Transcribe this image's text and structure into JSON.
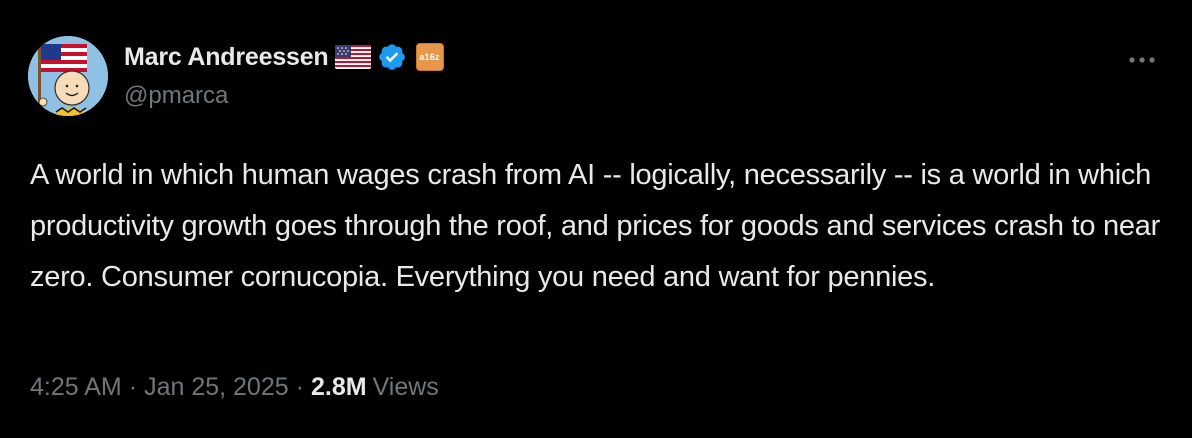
{
  "author": {
    "display_name": "Marc Andreessen",
    "handle": "@pmarca",
    "avatar_icon": "charlie-brown-with-us-flag-avatar",
    "flag_icon": "us-flag-emoji",
    "verified_icon": "blue-verified-badge",
    "affiliate_badge_text": "a16z",
    "affiliate_badge_color": "#e8964a"
  },
  "tweet": {
    "text": "A world in which human wages crash from AI -- logically, necessarily -- is a world in which productivity growth goes through the roof, and prices for goods and services crash to near zero. Consumer cornucopia. Everything you need and want for pennies."
  },
  "meta": {
    "time": "4:25 AM",
    "separator": "·",
    "date": "Jan 25, 2025",
    "views_count": "2.8M",
    "views_label": "Views"
  },
  "actions": {
    "more_icon": "more-horizontal-icon"
  },
  "colors": {
    "background": "#000000",
    "primary_text": "#e7e9ea",
    "secondary_text": "#71767b",
    "verified_blue": "#1d9bf0"
  }
}
